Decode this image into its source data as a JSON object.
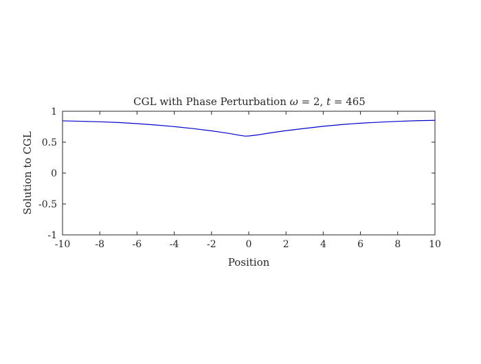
{
  "chart_data": {
    "type": "line",
    "title_prefix": "CGL with Phase Perturbation ",
    "title_omega_symbol": "ω",
    "title_omega_value": " = 2, ",
    "title_t_symbol": "t",
    "title_t_value": " = 465",
    "xlabel": "Position",
    "ylabel": "Solution to CGL",
    "xlim": [
      -10,
      10
    ],
    "ylim": [
      -1,
      1
    ],
    "xticks": [
      -10,
      -8,
      -6,
      -4,
      -2,
      0,
      2,
      4,
      6,
      8,
      10
    ],
    "yticks": [
      -1,
      -0.5,
      0,
      0.5,
      1
    ],
    "xtick_labels": [
      "-10",
      "-8",
      "-6",
      "-4",
      "-2",
      "0",
      "2",
      "4",
      "6",
      "8",
      "10"
    ],
    "ytick_labels": [
      "-1",
      "-0.5",
      "0",
      "0.5",
      "1"
    ],
    "grid": false,
    "series": [
      {
        "color": "#0000cc",
        "x": [
          -10,
          -9,
          -8,
          -7,
          -6,
          -5,
          -4,
          -3,
          -2,
          -1.5,
          -1,
          -0.5,
          -0.2,
          0,
          0.5,
          1,
          1.5,
          2,
          3,
          4,
          5,
          6,
          7,
          8,
          9,
          10
        ],
        "y": [
          0.845,
          0.838,
          0.83,
          0.818,
          0.8,
          0.778,
          0.752,
          0.72,
          0.683,
          0.662,
          0.638,
          0.612,
          0.598,
          0.6,
          0.618,
          0.643,
          0.665,
          0.686,
          0.722,
          0.757,
          0.785,
          0.807,
          0.823,
          0.837,
          0.847,
          0.853
        ]
      }
    ]
  }
}
